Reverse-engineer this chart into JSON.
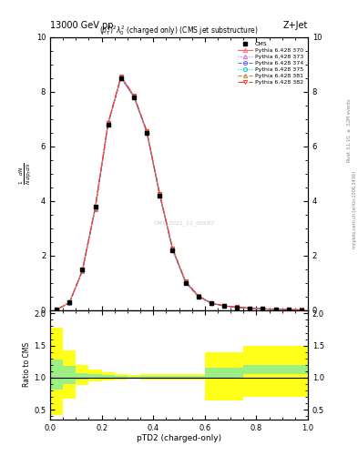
{
  "title_top": "13000 GeV pp",
  "title_right": "Z+Jet",
  "plot_title": "$(p_T^P)^2\\lambda\\_0^2$ (charged only) (CMS jet substructure)",
  "xlabel": "pTD2 (charged-only)",
  "ylabel_ratio": "Ratio to CMS",
  "watermark": "CMS_2021_11_00187",
  "cms_data_x": [
    0.025,
    0.075,
    0.125,
    0.175,
    0.225,
    0.275,
    0.325,
    0.375,
    0.425,
    0.475,
    0.525,
    0.575,
    0.625,
    0.675,
    0.725,
    0.775,
    0.825,
    0.875,
    0.925,
    0.975
  ],
  "cms_data_y": [
    0.02,
    0.3,
    1.5,
    3.8,
    6.8,
    8.5,
    7.8,
    6.5,
    4.2,
    2.2,
    1.0,
    0.5,
    0.25,
    0.15,
    0.1,
    0.07,
    0.05,
    0.03,
    0.02,
    0.01
  ],
  "pythia_x": [
    0.025,
    0.075,
    0.125,
    0.175,
    0.225,
    0.275,
    0.325,
    0.375,
    0.425,
    0.475,
    0.525,
    0.575,
    0.625,
    0.675,
    0.725,
    0.775,
    0.825,
    0.875,
    0.925,
    0.975
  ],
  "pythia_370": [
    0.02,
    0.28,
    1.45,
    3.75,
    6.85,
    8.55,
    7.85,
    6.55,
    4.25,
    2.25,
    1.05,
    0.52,
    0.26,
    0.16,
    0.11,
    0.075,
    0.052,
    0.032,
    0.022,
    0.012
  ],
  "pythia_373": [
    0.02,
    0.27,
    1.42,
    3.7,
    6.8,
    8.5,
    7.8,
    6.5,
    4.22,
    2.22,
    1.02,
    0.5,
    0.25,
    0.155,
    0.108,
    0.073,
    0.05,
    0.031,
    0.021,
    0.011
  ],
  "pythia_374": [
    0.02,
    0.27,
    1.43,
    3.72,
    6.82,
    8.52,
    7.82,
    6.52,
    4.22,
    2.22,
    1.02,
    0.5,
    0.255,
    0.155,
    0.108,
    0.073,
    0.05,
    0.031,
    0.021,
    0.011
  ],
  "pythia_375": [
    0.02,
    0.27,
    1.44,
    3.73,
    6.83,
    8.53,
    7.83,
    6.53,
    4.23,
    2.23,
    1.03,
    0.51,
    0.256,
    0.156,
    0.109,
    0.074,
    0.051,
    0.032,
    0.022,
    0.012
  ],
  "pythia_381": [
    0.02,
    0.28,
    1.46,
    3.76,
    6.86,
    8.56,
    7.86,
    6.56,
    4.26,
    2.26,
    1.06,
    0.53,
    0.265,
    0.162,
    0.112,
    0.077,
    0.053,
    0.033,
    0.023,
    0.013
  ],
  "pythia_382": [
    0.02,
    0.28,
    1.46,
    3.76,
    6.86,
    8.56,
    7.87,
    6.57,
    4.27,
    2.27,
    1.07,
    0.53,
    0.265,
    0.162,
    0.113,
    0.077,
    0.053,
    0.033,
    0.023,
    0.013
  ],
  "series": [
    {
      "key": "pythia_370",
      "color": "#ff6666",
      "marker": "^",
      "ls": "-",
      "label": "Pythia 6.428 370"
    },
    {
      "key": "pythia_373",
      "color": "#cc66cc",
      "marker": "^",
      "ls": ":",
      "label": "Pythia 6.428 373"
    },
    {
      "key": "pythia_374",
      "color": "#6666ff",
      "marker": "o",
      "ls": "--",
      "label": "Pythia 6.428 374"
    },
    {
      "key": "pythia_375",
      "color": "#00cccc",
      "marker": "o",
      "ls": ":",
      "label": "Pythia 6.428 375"
    },
    {
      "key": "pythia_381",
      "color": "#cc8833",
      "marker": "^",
      "ls": "--",
      "label": "Pythia 6.428 381"
    },
    {
      "key": "pythia_382",
      "color": "#ff3333",
      "marker": "v",
      "ls": "-.",
      "label": "Pythia 6.428 382"
    }
  ],
  "ratio_x_edges": [
    0.0,
    0.05,
    0.1,
    0.15,
    0.2,
    0.25,
    0.3,
    0.35,
    0.4,
    0.45,
    0.5,
    0.55,
    0.6,
    0.65,
    0.7,
    0.75,
    1.0
  ],
  "ratio_green_lo": [
    0.82,
    0.9,
    0.97,
    0.98,
    0.98,
    0.99,
    1.0,
    0.99,
    0.99,
    0.99,
    0.99,
    0.99,
    1.0,
    1.0,
    1.0,
    1.05,
    1.05
  ],
  "ratio_green_hi": [
    1.28,
    1.18,
    1.07,
    1.05,
    1.04,
    1.03,
    1.02,
    1.03,
    1.03,
    1.03,
    1.03,
    1.03,
    1.15,
    1.15,
    1.15,
    1.2,
    1.2
  ],
  "ratio_yellow_lo": [
    0.42,
    0.68,
    0.88,
    0.94,
    0.96,
    0.97,
    0.98,
    0.97,
    0.97,
    0.97,
    0.97,
    0.97,
    0.65,
    0.65,
    0.65,
    0.7,
    0.7
  ],
  "ratio_yellow_hi": [
    1.78,
    1.42,
    1.2,
    1.12,
    1.08,
    1.06,
    1.04,
    1.06,
    1.06,
    1.06,
    1.06,
    1.06,
    1.4,
    1.4,
    1.4,
    1.5,
    1.5
  ],
  "ylim_main": [
    0,
    10
  ],
  "ylim_ratio": [
    0.35,
    2.05
  ],
  "yticks_main": [
    0,
    2,
    4,
    6,
    8,
    10
  ],
  "yticks_ratio": [
    0.5,
    1.0,
    1.5,
    2.0
  ]
}
